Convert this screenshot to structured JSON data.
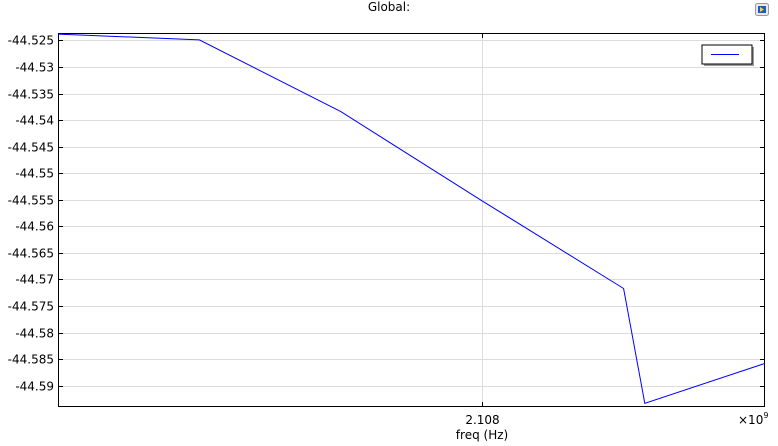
{
  "chart_data": {
    "type": "line",
    "title": "Global:",
    "xlabel": "freq (Hz)",
    "ylabel": "",
    "x_tick_labels": [
      "2.108"
    ],
    "x_multiplier_base": "×10",
    "x_multiplier_exp": "9",
    "y_ticks": [
      -44.525,
      -44.53,
      -44.535,
      -44.54,
      -44.545,
      -44.55,
      -44.555,
      -44.56,
      -44.565,
      -44.57,
      -44.575,
      -44.58,
      -44.585,
      -44.59
    ],
    "y_tick_labels": [
      "-44.525",
      "-44.53",
      "-44.535",
      "-44.54",
      "-44.545",
      "-44.55",
      "-44.555",
      "-44.56",
      "-44.565",
      "-44.57",
      "-44.575",
      "-44.58",
      "-44.585",
      "-44.59"
    ],
    "ylim": [
      -44.594,
      -44.5236
    ],
    "xlim": [
      2.105,
      2.11
    ],
    "grid": true,
    "legend_position": "top-right",
    "series": [
      {
        "color": "#0000ff",
        "points": [
          [
            2.105,
            -44.5238
          ],
          [
            2.106,
            -44.5249
          ],
          [
            2.107,
            -44.5384
          ],
          [
            2.108,
            -44.5552
          ],
          [
            2.109,
            -44.5717
          ],
          [
            2.10915,
            -44.5933
          ],
          [
            2.11,
            -44.5858
          ]
        ]
      }
    ]
  },
  "icon": "data-export-icon"
}
